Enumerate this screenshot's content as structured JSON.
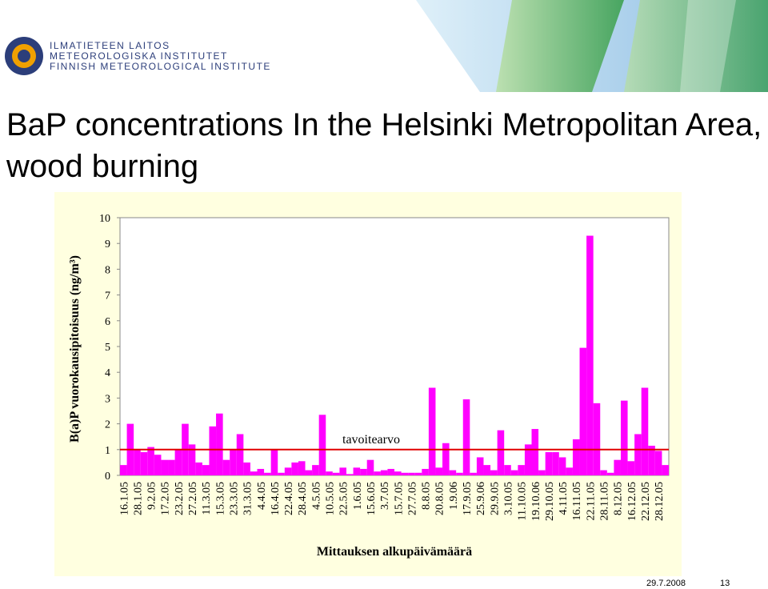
{
  "header": {
    "logo_lines": [
      "ILMATIETEEN LAITOS",
      "METEOROLOGISKA INSTITUTET",
      "FINNISH METEOROLOGICAL INSTITUTE"
    ]
  },
  "title": "BaP concentrations In the Helsinki Metropolitan Area, wood burning",
  "chart_data": {
    "type": "bar",
    "ylabel": "B(a)P vuorokausipitoisuus (ng/m³)",
    "xlabel": "Mittauksen alkupäivämäärä",
    "categories": [
      "16.1.05",
      null,
      "28.1.05",
      null,
      "9.2.05",
      null,
      "17.2.05",
      null,
      "23.2.05",
      null,
      "27.2.05",
      null,
      "11.3.05",
      null,
      "15.3.05",
      null,
      "23.3.05",
      null,
      "31.3.05",
      null,
      "4.4.05",
      null,
      "16.4.05",
      null,
      "22.4.05",
      null,
      "28.4.05",
      null,
      "4.5.05",
      null,
      "10.5.05",
      null,
      "22.5.05",
      null,
      "1.6.05",
      null,
      "15.6.05",
      null,
      "3.7.05",
      null,
      "15.7.05",
      null,
      "27.7.05",
      null,
      "8.8.05",
      null,
      "20.8.05",
      null,
      "1.9.06",
      null,
      "17.9.05",
      null,
      "25.9.06",
      null,
      "29.9.05",
      null,
      "3.10.05",
      null,
      "11.10.05",
      null,
      "19.10.06",
      null,
      "29.10.05",
      null,
      "4.11.05",
      null,
      "16.11.05",
      null,
      "22.11.05",
      null,
      "28.11.05",
      null,
      "8.12.05",
      null,
      "16.12.05",
      null,
      "22.12.05",
      null,
      "28.12.05",
      null
    ],
    "values": [
      0.4,
      2.0,
      1.0,
      0.9,
      1.1,
      0.8,
      0.6,
      0.6,
      1.0,
      2.0,
      1.2,
      0.5,
      0.4,
      1.9,
      2.4,
      0.6,
      1.0,
      1.6,
      0.5,
      0.15,
      0.25,
      0.1,
      1.0,
      0.1,
      0.3,
      0.5,
      0.55,
      0.2,
      0.4,
      2.35,
      0.15,
      0.1,
      0.3,
      0.05,
      0.3,
      0.25,
      0.6,
      0.15,
      0.2,
      0.25,
      0.15,
      0.1,
      0.1,
      0.1,
      0.25,
      3.4,
      0.3,
      1.25,
      0.2,
      0.1,
      2.95,
      0.1,
      0.7,
      0.4,
      0.2,
      1.75,
      0.4,
      0.2,
      0.4,
      1.2,
      1.8,
      0.2,
      0.9,
      0.9,
      0.7,
      0.3,
      1.4,
      4.95,
      9.3,
      2.8,
      0.2,
      0.1,
      0.6,
      2.9,
      0.55,
      1.6,
      3.4,
      1.15,
      0.95,
      0.4
    ],
    "color": "#ff00ff",
    "ylim": [
      0,
      10
    ],
    "yticks": [
      0,
      1,
      2,
      3,
      4,
      5,
      6,
      7,
      8,
      9,
      10
    ],
    "reference_line": {
      "value": 1,
      "label": "tavoitearvo",
      "color": "#e00000"
    }
  },
  "footer": {
    "date": "29.7.2008",
    "page": "13"
  }
}
